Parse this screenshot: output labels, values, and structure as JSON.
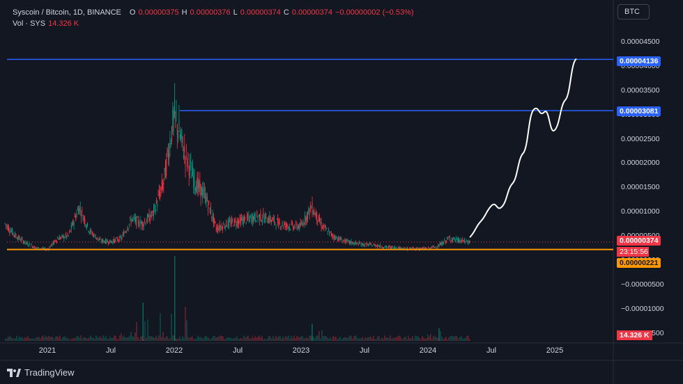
{
  "legend": {
    "title": "Syscoin / Bitcoin, 1D, BINANCE",
    "o_label": "O",
    "o_value": "0.00000375",
    "h_label": "H",
    "h_value": "0.00000376",
    "l_label": "L",
    "l_value": "0.00000374",
    "c_label": "C",
    "c_value": "0.00000374",
    "change": "−0.00000002 (−0.53%)",
    "vol_label": "Vol · SYS",
    "vol_value": "14.326 K"
  },
  "currency_button": "BTC",
  "y_ticks": [
    "0.00004500",
    "0.00004000",
    "0.00003500",
    "0.00003000",
    "0.00002500",
    "0.00002000",
    "0.00001500",
    "0.00001000",
    "0.00000500",
    "0.00000000",
    "−0.00000500",
    "−0.00001000",
    "−0.00001500"
  ],
  "x_ticks": [
    "2021",
    "Jul",
    "2022",
    "Jul",
    "2023",
    "Jul",
    "2024",
    "Jul",
    "2025"
  ],
  "badges": {
    "top_line": "0.00004136",
    "mid_line": "0.00003081",
    "last_price": "0.00000374",
    "countdown": "23:15:56",
    "support_line": "0.00000221",
    "volume": "14.326 K"
  },
  "brand": "TradingView",
  "colors": {
    "background": "#131722",
    "up": "#089981",
    "down": "#f23645",
    "horizontal_line": "#2962ff",
    "support_line": "#ff9800",
    "projection": "#ffffff"
  },
  "chart_data": {
    "type": "candlestick",
    "title": "Syscoin / Bitcoin, 1D, BINANCE",
    "ylabel": "BTC",
    "ylim": [
      -1.5e-05,
      4.7e-05
    ],
    "horizontal_lines": [
      {
        "value": 4.136e-05,
        "color": "#2962ff"
      },
      {
        "value": 3.081e-05,
        "color": "#2962ff",
        "start": "2022-01"
      },
      {
        "value": 2.21e-06,
        "color": "#ff9800"
      }
    ],
    "price_path": {
      "x": [
        "2020-09",
        "2020-10",
        "2020-11",
        "2020-12",
        "2021-01",
        "2021-02",
        "2021-03",
        "2021-04",
        "2021-05",
        "2021-06",
        "2021-07",
        "2021-08",
        "2021-09",
        "2021-10",
        "2021-11",
        "2021-12",
        "2022-01",
        "2022-02",
        "2022-03",
        "2022-04",
        "2022-05",
        "2022-06",
        "2022-07",
        "2022-08",
        "2022-09",
        "2022-10",
        "2022-11",
        "2022-12",
        "2023-01",
        "2023-02",
        "2023-03",
        "2023-04",
        "2023-05",
        "2023-06",
        "2023-07",
        "2023-08",
        "2023-09",
        "2023-10",
        "2023-11",
        "2023-12",
        "2024-01",
        "2024-02",
        "2024-03",
        "2024-04",
        "2024-05"
      ],
      "y": [
        7.5e-06,
        5e-06,
        3.5e-06,
        2.5e-06,
        2.2e-06,
        4.5e-06,
        5e-06,
        1.1e-05,
        6e-06,
        4e-06,
        3.8e-06,
        4.5e-06,
        8.5e-06,
        7.5e-06,
        9.5e-06,
        1.6e-05,
        3e-05,
        2.2e-05,
        1.6e-05,
        1.3e-05,
        6.5e-06,
        7.5e-06,
        8e-06,
        8.5e-06,
        9e-06,
        8.5e-06,
        7.5e-06,
        7e-06,
        7e-06,
        1.1e-05,
        7e-06,
        5e-06,
        4e-06,
        3.5e-06,
        3.2e-06,
        3.1e-06,
        2.7e-06,
        2.6e-06,
        2.4e-06,
        2.4e-06,
        2.4e-06,
        2.9e-06,
        4.5e-06,
        4e-06,
        3.74e-06
      ]
    },
    "volume": {
      "x": [
        "2021-10",
        "2022-01",
        "2023-02",
        "2024-02"
      ],
      "y_relative": [
        0.45,
        1.0,
        0.2,
        0.15
      ]
    },
    "projection": {
      "x": [
        "2024-05",
        "2024-06",
        "2024-07",
        "2024-08",
        "2024-09",
        "2024-10",
        "2024-11",
        "2024-12",
        "2025-01",
        "2025-02",
        "2025-03"
      ],
      "y": [
        4.8e-06,
        8e-06,
        1.12e-05,
        1.1e-05,
        1.58e-05,
        2.2e-05,
        3.1e-05,
        3.05e-05,
        2.68e-05,
        3.3e-05,
        4.14e-05
      ]
    }
  }
}
